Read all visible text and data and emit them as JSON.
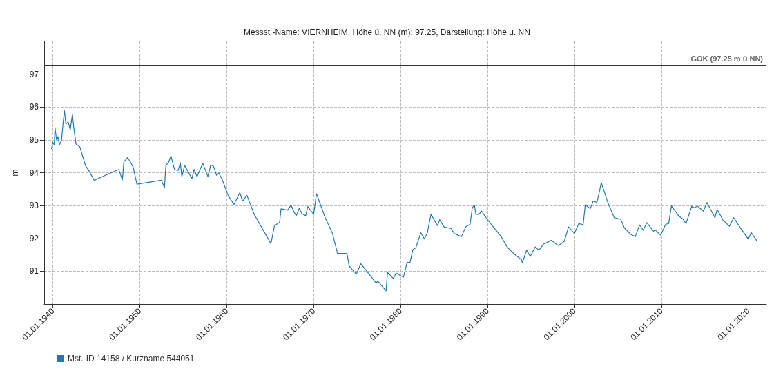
{
  "chart_data": {
    "type": "line",
    "title": "Messst.-Name: VIERNHEIM, Höhe ü. NN (m): 97.25, Darstellung: Höhe u. NN",
    "ylabel": "m",
    "x": [
      "1939-11",
      "1940-01",
      "1940-03",
      "1940-04",
      "1940-06",
      "1940-08",
      "1940-10",
      "1941-01",
      "1941-03",
      "1941-05",
      "1941-07",
      "1941-10",
      "1942-01",
      "1942-04",
      "1942-06",
      "1942-09",
      "1943-02",
      "1943-10",
      "1944-03",
      "1944-10",
      "1947-08",
      "1948-01",
      "1948-03",
      "1948-08",
      "1948-12",
      "1949-04",
      "1949-09",
      "1952-07",
      "1952-11",
      "1953-01",
      "1953-05",
      "1953-08",
      "1954-01",
      "1954-06",
      "1954-09",
      "1954-11",
      "1955-03",
      "1956-01",
      "1956-04",
      "1956-08",
      "1957-04",
      "1957-11",
      "1958-03",
      "1958-07",
      "1958-11",
      "1959-02",
      "1959-07",
      "1960-03",
      "1960-11",
      "1961-07",
      "1961-11",
      "1962-05",
      "1963-03",
      "1965-02",
      "1965-07",
      "1966-02",
      "1966-04",
      "1967-01",
      "1967-06",
      "1967-10",
      "1968-01",
      "1968-05",
      "1968-09",
      "1969-02",
      "1969-05",
      "1970-01",
      "1970-05",
      "1971-05",
      "1972-03",
      "1972-10",
      "1973-11",
      "1974-02",
      "1974-12",
      "1975-06",
      "1977-03",
      "1977-06",
      "1978-05",
      "1978-07",
      "1979-03",
      "1979-07",
      "1980-05",
      "1980-10",
      "1981-02",
      "1981-06",
      "1981-10",
      "1982-05",
      "1982-10",
      "1983-02",
      "1983-07",
      "1984-04",
      "1984-07",
      "1985-01",
      "1985-11",
      "1986-03",
      "1987-01",
      "1987-07",
      "1988-01",
      "1988-04",
      "1988-07",
      "1988-09",
      "1989-01",
      "1989-05",
      "1989-11",
      "1990-09",
      "1991-08",
      "1992-04",
      "1993-01",
      "1993-12",
      "1994-01",
      "1994-07",
      "1994-12",
      "1995-07",
      "1995-12",
      "1996-06",
      "1997-05",
      "1998-03",
      "1998-11",
      "1999-05",
      "2000-01",
      "2000-07",
      "2001-01",
      "2001-04",
      "2001-11",
      "2002-03",
      "2002-08",
      "2002-10",
      "2003-02",
      "2003-11",
      "2004-08",
      "2005-05",
      "2005-10",
      "2006-07",
      "2007-01",
      "2007-07",
      "2007-12",
      "2008-05",
      "2009-02",
      "2009-05",
      "2009-12",
      "2010-07",
      "2010-11",
      "2011-03",
      "2012-01",
      "2012-07",
      "2012-11",
      "2013-07",
      "2013-10",
      "2014-03",
      "2014-11",
      "2015-04",
      "2016-03",
      "2016-06",
      "2017-02",
      "2017-11",
      "2018-05",
      "2019-03",
      "2020-01",
      "2020-05",
      "2021-01"
    ],
    "series": [
      {
        "name": "Mst.-ID 14158 / Kurzname 544051",
        "color": "#1f77b4",
        "values": [
          94.72,
          94.93,
          94.84,
          95.38,
          95.0,
          95.1,
          94.84,
          95.0,
          95.48,
          95.89,
          95.48,
          95.55,
          95.31,
          95.79,
          95.35,
          94.87,
          94.8,
          94.22,
          94.05,
          93.77,
          94.1,
          93.78,
          94.33,
          94.46,
          94.33,
          94.16,
          93.65,
          93.77,
          93.54,
          94.22,
          94.33,
          94.51,
          94.09,
          94.07,
          94.31,
          93.88,
          94.22,
          93.82,
          94.1,
          93.88,
          94.29,
          93.88,
          94.24,
          94.19,
          93.92,
          93.99,
          93.78,
          93.31,
          93.03,
          93.39,
          93.14,
          93.31,
          92.73,
          91.84,
          92.39,
          92.49,
          92.9,
          92.86,
          93.01,
          92.8,
          92.69,
          92.91,
          92.75,
          92.69,
          92.97,
          92.73,
          93.36,
          92.63,
          92.15,
          91.54,
          91.54,
          91.16,
          90.91,
          91.23,
          90.65,
          90.69,
          90.4,
          90.96,
          90.78,
          90.94,
          90.82,
          91.27,
          91.27,
          91.66,
          91.71,
          92.17,
          91.98,
          92.18,
          92.73,
          92.39,
          92.57,
          92.35,
          92.3,
          92.15,
          92.05,
          92.35,
          92.43,
          92.93,
          93.01,
          92.73,
          92.73,
          92.83,
          92.63,
          92.35,
          92.05,
          91.74,
          91.54,
          91.35,
          91.25,
          91.64,
          91.45,
          91.74,
          91.64,
          91.82,
          91.94,
          91.78,
          91.91,
          92.35,
          92.15,
          92.45,
          92.42,
          93.02,
          92.91,
          93.14,
          93.1,
          93.27,
          93.7,
          93.1,
          92.63,
          92.58,
          92.32,
          92.12,
          92.05,
          92.41,
          92.25,
          92.48,
          92.22,
          92.25,
          92.1,
          92.43,
          92.45,
          92.99,
          92.68,
          92.59,
          92.45,
          92.98,
          92.93,
          92.98,
          92.83,
          93.09,
          92.63,
          92.88,
          92.56,
          92.37,
          92.63,
          92.29,
          91.98,
          92.18,
          91.92
        ]
      }
    ],
    "xlim": [
      "1939-01",
      "2022-02"
    ],
    "xticks": [
      {
        "value": "1940-01-01",
        "label": "01.01.1940"
      },
      {
        "value": "1950-01-01",
        "label": "01.01.1950"
      },
      {
        "value": "1960-01-01",
        "label": "01.01.1960"
      },
      {
        "value": "1970-01-01",
        "label": "01.01.1970"
      },
      {
        "value": "1980-01-01",
        "label": "01.01.1980"
      },
      {
        "value": "1990-01-01",
        "label": "01.01.1990"
      },
      {
        "value": "2000-01-01",
        "label": "01.01.2000"
      },
      {
        "value": "2010-01-01",
        "label": "01.01.2010"
      },
      {
        "value": "2020-01-01",
        "label": "01.01.2020"
      }
    ],
    "ylim": [
      90,
      98
    ],
    "yticks": [
      91,
      92,
      93,
      94,
      95,
      96,
      97
    ],
    "ref_lines": [
      {
        "axis": "y",
        "value": 97.25,
        "label": "GOK (97.25 m ü NN)",
        "color": "#333333",
        "line_style": "solid"
      }
    ],
    "grid": true,
    "legend": "bottom left",
    "marker": "none",
    "line_style": "solid"
  }
}
